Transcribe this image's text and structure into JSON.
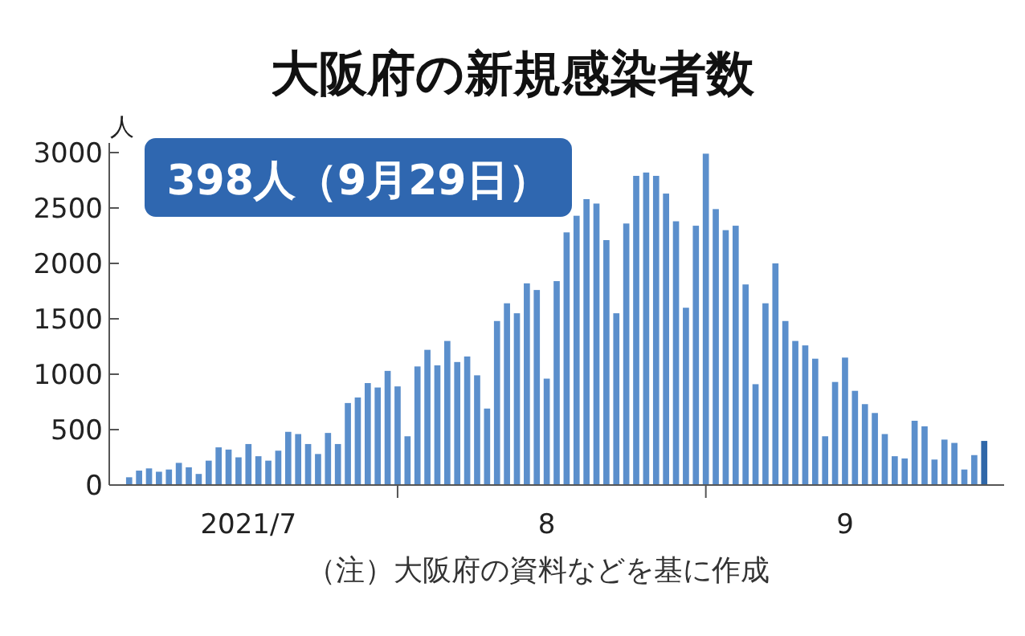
{
  "chart_data": {
    "type": "bar",
    "title": "大阪府の新規感染者数",
    "ylabel": "人",
    "annotations": [
      "398人（9月29日）",
      "（注）大阪府の資料などを基に作成"
    ],
    "x": [
      "2021-07-05",
      "2021-07-06",
      "2021-07-07",
      "2021-07-08",
      "2021-07-09",
      "2021-07-10",
      "2021-07-11",
      "2021-07-12",
      "2021-07-13",
      "2021-07-14",
      "2021-07-15",
      "2021-07-16",
      "2021-07-17",
      "2021-07-18",
      "2021-07-19",
      "2021-07-20",
      "2021-07-21",
      "2021-07-22",
      "2021-07-23",
      "2021-07-24",
      "2021-07-25",
      "2021-07-26",
      "2021-07-27",
      "2021-07-28",
      "2021-07-29",
      "2021-07-30",
      "2021-07-31",
      "2021-08-01",
      "2021-08-02",
      "2021-08-03",
      "2021-08-04",
      "2021-08-05",
      "2021-08-06",
      "2021-08-07",
      "2021-08-08",
      "2021-08-09",
      "2021-08-10",
      "2021-08-11",
      "2021-08-12",
      "2021-08-13",
      "2021-08-14",
      "2021-08-15",
      "2021-08-16",
      "2021-08-17",
      "2021-08-18",
      "2021-08-19",
      "2021-08-20",
      "2021-08-21",
      "2021-08-22",
      "2021-08-23",
      "2021-08-24",
      "2021-08-25",
      "2021-08-26",
      "2021-08-27",
      "2021-08-28",
      "2021-08-29",
      "2021-08-30",
      "2021-08-31",
      "2021-09-01",
      "2021-09-02",
      "2021-09-03",
      "2021-09-04",
      "2021-09-05",
      "2021-09-06",
      "2021-09-07",
      "2021-09-08",
      "2021-09-09",
      "2021-09-10",
      "2021-09-11",
      "2021-09-12",
      "2021-09-13",
      "2021-09-14",
      "2021-09-15",
      "2021-09-16",
      "2021-09-17",
      "2021-09-18",
      "2021-09-19",
      "2021-09-20",
      "2021-09-21",
      "2021-09-22",
      "2021-09-23",
      "2021-09-24",
      "2021-09-25",
      "2021-09-26",
      "2021-09-27",
      "2021-09-28",
      "2021-09-29"
    ],
    "values": [
      70,
      130,
      150,
      120,
      140,
      200,
      160,
      100,
      220,
      340,
      320,
      250,
      370,
      260,
      220,
      310,
      480,
      460,
      370,
      280,
      470,
      370,
      740,
      790,
      920,
      880,
      1030,
      890,
      440,
      1070,
      1220,
      1080,
      1300,
      1110,
      1160,
      990,
      690,
      1480,
      1640,
      1550,
      1820,
      1760,
      960,
      1840,
      2280,
      2430,
      2580,
      2540,
      2210,
      1550,
      2360,
      2790,
      2820,
      2790,
      2630,
      2380,
      1600,
      2340,
      2990,
      2490,
      2300,
      2340,
      1810,
      910,
      1640,
      2000,
      1480,
      1300,
      1260,
      1140,
      440,
      930,
      1150,
      850,
      730,
      650,
      460,
      260,
      240,
      580,
      530,
      230,
      410,
      380,
      140,
      270,
      398
    ],
    "colors": [
      "#5b8fcc",
      "#5b8fcc",
      "#5b8fcc",
      "#5b8fcc",
      "#5b8fcc",
      "#5b8fcc",
      "#5b8fcc",
      "#5b8fcc",
      "#5b8fcc",
      "#5b8fcc",
      "#5b8fcc",
      "#5b8fcc",
      "#5b8fcc",
      "#5b8fcc",
      "#5b8fcc",
      "#5b8fcc",
      "#5b8fcc",
      "#5b8fcc",
      "#5b8fcc",
      "#5b8fcc",
      "#5b8fcc",
      "#5b8fcc",
      "#5b8fcc",
      "#5b8fcc",
      "#5b8fcc",
      "#5b8fcc",
      "#5b8fcc",
      "#5b8fcc",
      "#5b8fcc",
      "#5b8fcc",
      "#5b8fcc",
      "#5b8fcc",
      "#5b8fcc",
      "#5b8fcc",
      "#5b8fcc",
      "#5b8fcc",
      "#5b8fcc",
      "#5b8fcc",
      "#5b8fcc",
      "#5b8fcc",
      "#5b8fcc",
      "#5b8fcc",
      "#5b8fcc",
      "#5b8fcc",
      "#5b8fcc",
      "#5b8fcc",
      "#5b8fcc",
      "#5b8fcc",
      "#5b8fcc",
      "#5b8fcc",
      "#5b8fcc",
      "#5b8fcc",
      "#5b8fcc",
      "#5b8fcc",
      "#5b8fcc",
      "#5b8fcc",
      "#5b8fcc",
      "#5b8fcc",
      "#5b8fcc",
      "#5b8fcc",
      "#5b8fcc",
      "#5b8fcc",
      "#5b8fcc",
      "#5b8fcc",
      "#5b8fcc",
      "#5b8fcc",
      "#5b8fcc",
      "#5b8fcc",
      "#5b8fcc",
      "#5b8fcc",
      "#5b8fcc",
      "#5b8fcc",
      "#5b8fcc",
      "#5b8fcc",
      "#5b8fcc",
      "#5b8fcc",
      "#5b8fcc",
      "#5b8fcc",
      "#5b8fcc",
      "#5b8fcc",
      "#5b8fcc",
      "#5b8fcc",
      "#5b8fcc",
      "#5b8fcc",
      "#5b8fcc",
      "#5b8fcc",
      "#2f67a8"
    ],
    "xlim": [
      "2021-07-03",
      "2021-10-01"
    ],
    "xticks": [
      {
        "value": "2021-07-17",
        "label": "2021/7"
      },
      {
        "value": "2021-08-01",
        "label": null
      },
      {
        "value": "2021-08-16",
        "label": "8"
      },
      {
        "value": "2021-09-01",
        "label": null
      },
      {
        "value": "2021-09-15",
        "label": "9"
      }
    ],
    "ylim": [
      0,
      3000
    ],
    "yticks": [
      0,
      500,
      1000,
      1500,
      2000,
      2500,
      3000
    ]
  }
}
